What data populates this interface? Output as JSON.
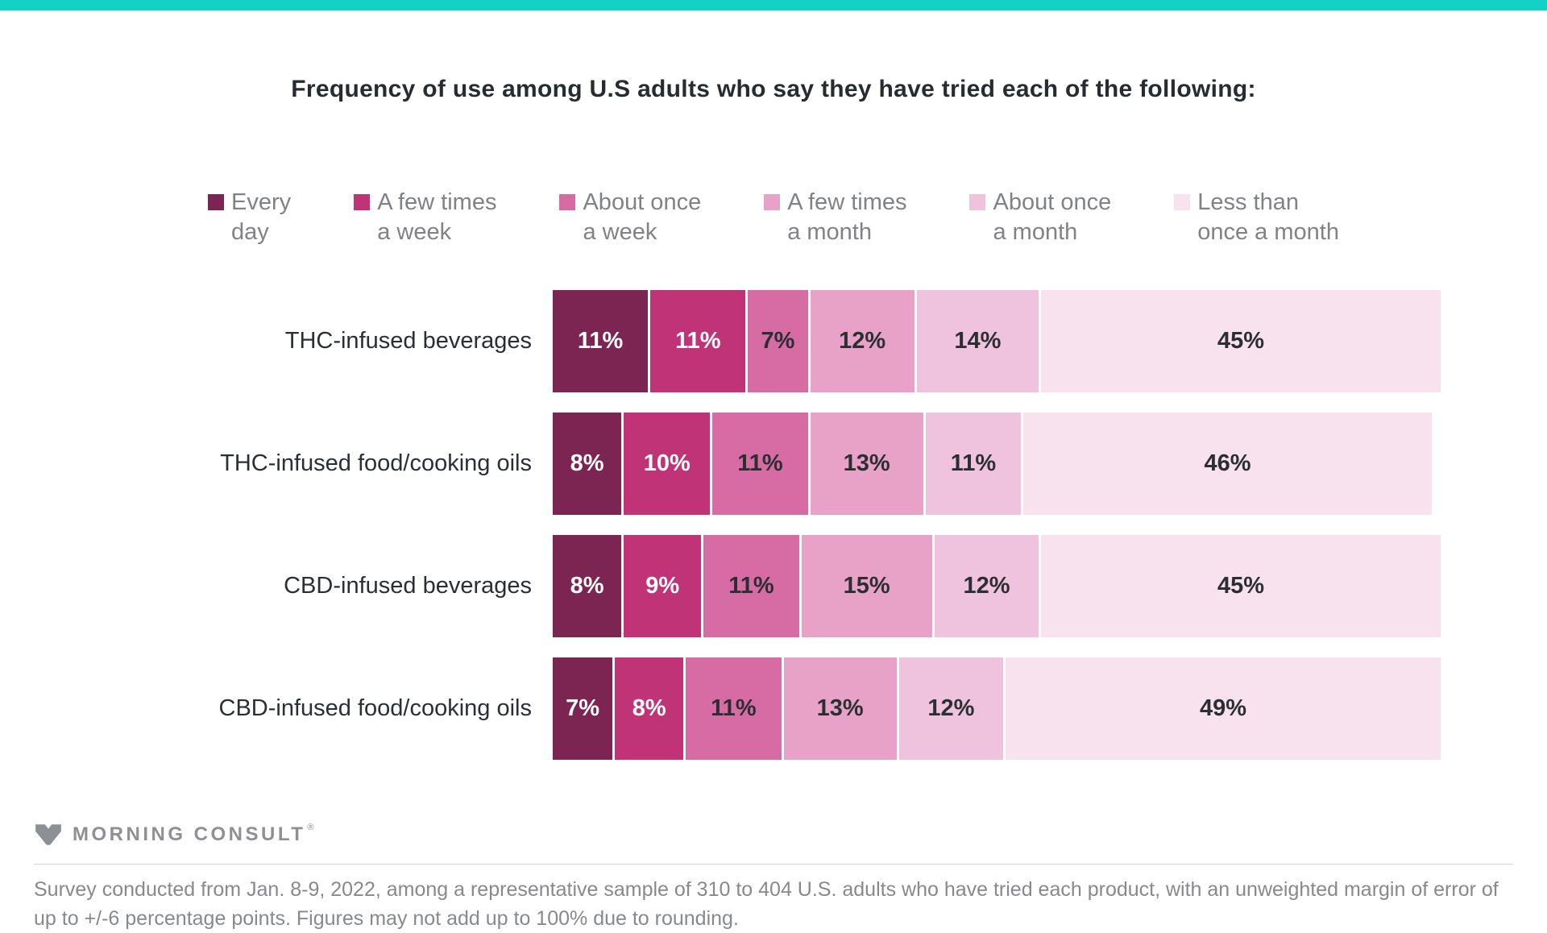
{
  "page": {
    "accent_color": "#15d0c4"
  },
  "title": "Frequency of use among U.S adults who say they have tried each of the following:",
  "legend": {
    "items": [
      {
        "line1": "Every",
        "line2": "day"
      },
      {
        "line1": "A few times",
        "line2": "a week"
      },
      {
        "line1": "About once",
        "line2": "a week"
      },
      {
        "line1": "A few times",
        "line2": "a month"
      },
      {
        "line1": "About once",
        "line2": "a month"
      },
      {
        "line1": "Less than",
        "line2": "once a month"
      }
    ]
  },
  "chart_data": {
    "type": "bar",
    "orientation": "horizontal_stacked",
    "title": "Frequency of use among U.S adults who say they have tried each of the following:",
    "categories": [
      "THC-infused beverages",
      "THC-infused food/cooking oils",
      "CBD-infused beverages",
      "CBD-infused food/cooking oils"
    ],
    "series": [
      {
        "name": "Every day",
        "color": "#7c2452",
        "value_text_color": "#ffffff",
        "values": [
          11,
          8,
          8,
          7
        ]
      },
      {
        "name": "A few times a week",
        "color": "#c13377",
        "value_text_color": "#ffffff",
        "values": [
          11,
          10,
          9,
          8
        ]
      },
      {
        "name": "About once a week",
        "color": "#d76ba4",
        "value_text_color": "#2b2f33",
        "values": [
          7,
          11,
          11,
          11
        ]
      },
      {
        "name": "A few times a month",
        "color": "#e8a2c8",
        "value_text_color": "#2b2f33",
        "values": [
          12,
          13,
          15,
          13
        ]
      },
      {
        "name": "About once a month",
        "color": "#efc3dd",
        "value_text_color": "#2b2f33",
        "values": [
          14,
          11,
          12,
          12
        ]
      },
      {
        "name": "Less than once a month",
        "color": "#f8e2ee",
        "value_text_color": "#2b2f33",
        "values": [
          45,
          46,
          45,
          49
        ]
      }
    ],
    "value_suffix": "%",
    "xlim": [
      0,
      100
    ],
    "grid": false,
    "legend_position": "top"
  },
  "footer": {
    "brand": "MORNING CONSULT",
    "registered_symbol": "®",
    "note": "Survey conducted from Jan. 8-9, 2022, among a representative sample of 310 to 404 U.S. adults who have tried each product, with an unweighted margin of error of up to +/-6 percentage points. Figures may not add up to 100% due to rounding."
  }
}
